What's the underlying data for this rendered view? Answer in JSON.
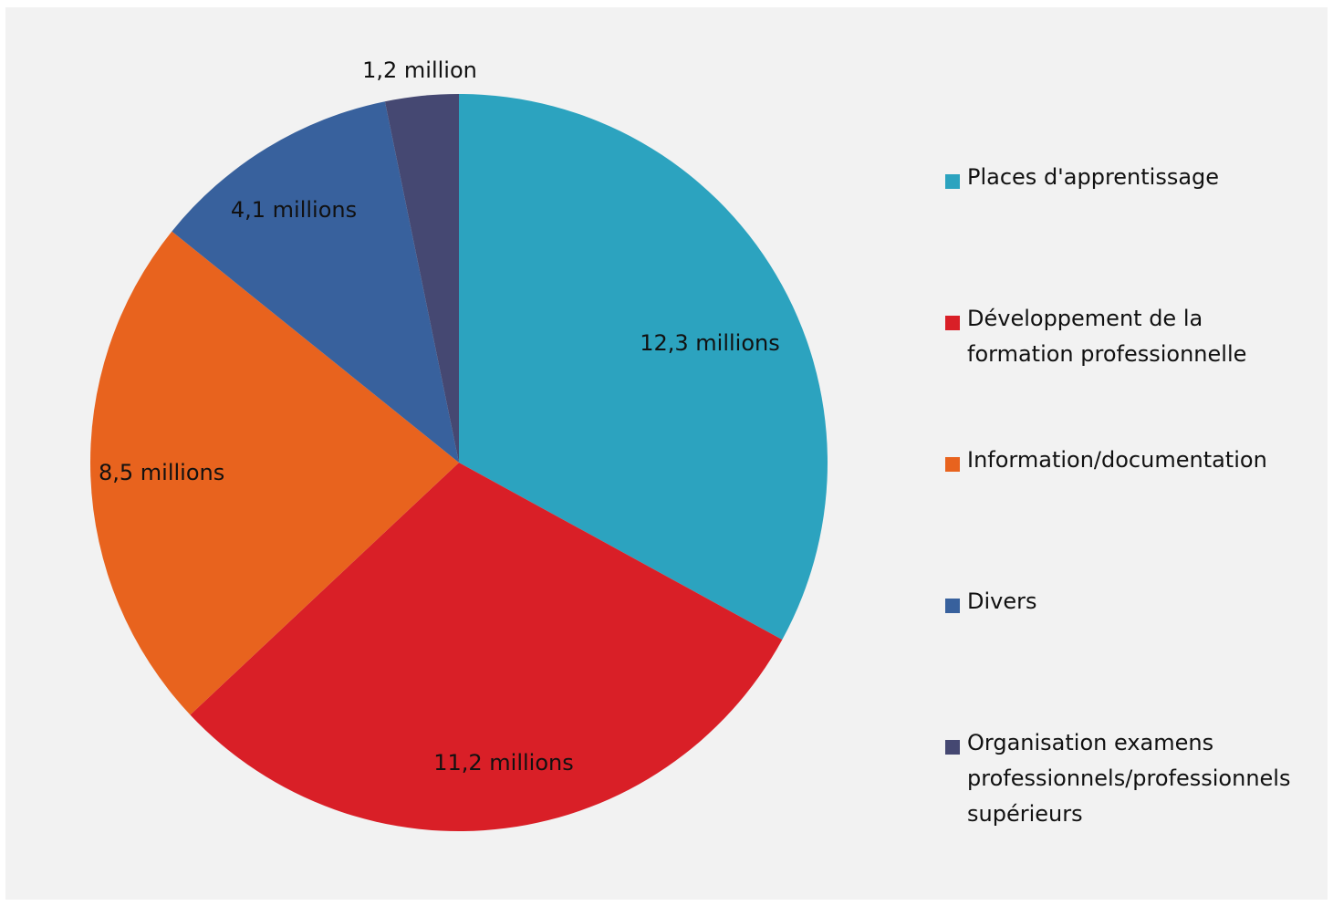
{
  "chart_data": {
    "type": "pie",
    "title": "",
    "legend_position": "right",
    "slices": [
      {
        "name": "Places d'apprentissage",
        "value": 12.3,
        "label": "12,3 millions",
        "color": "#2ca3bf"
      },
      {
        "name": "Développement de la formation professionnelle",
        "value": 11.2,
        "label": "11,2 millions",
        "color": "#d91f27"
      },
      {
        "name": "Information/documentation",
        "value": 8.5,
        "label": "8,5 millions",
        "color": "#e8631e"
      },
      {
        "name": "Divers",
        "value": 4.1,
        "label": "4,1 millions",
        "color": "#38619d"
      },
      {
        "name": "Organisation examens professionnels/professionnels supérieurs",
        "value": 1.2,
        "label": "1,2 million",
        "color": "#454872"
      }
    ]
  },
  "legend": {
    "items": [
      {
        "lines": [
          "Places d'apprentissage"
        ]
      },
      {
        "lines": [
          "Développement de la",
          "formation professionnelle"
        ]
      },
      {
        "lines": [
          "Information/documentation"
        ]
      },
      {
        "lines": [
          "Divers"
        ]
      },
      {
        "lines": [
          "Organisation examens",
          "professionnels/professionnels",
          "supérieurs"
        ]
      }
    ]
  }
}
